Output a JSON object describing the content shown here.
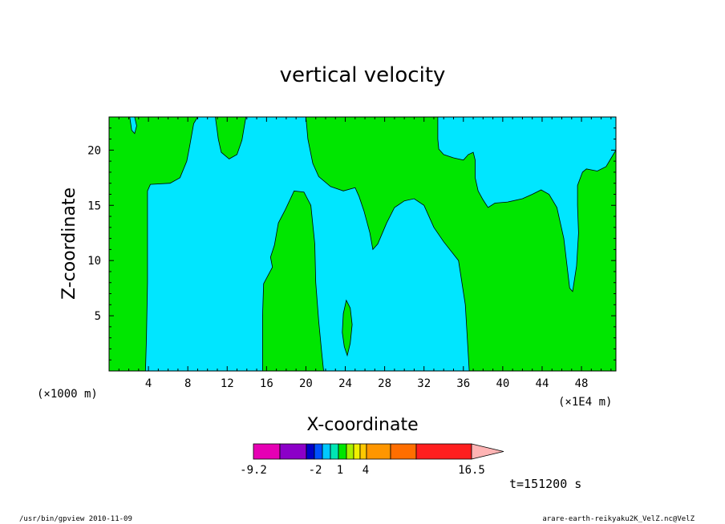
{
  "chart_data": {
    "type": "heatmap",
    "title": "vertical velocity",
    "xlabel": "X-coordinate",
    "ylabel": "Z-coordinate",
    "x_unit_label": "(×1000 m)",
    "x_range_unit_label": "(×1E4 m)",
    "xlim": [
      0,
      51.5
    ],
    "ylim": [
      0,
      23
    ],
    "x_ticks": [
      4,
      8,
      12,
      16,
      20,
      24,
      28,
      32,
      36,
      40,
      44,
      48
    ],
    "y_ticks": [
      5,
      10,
      15,
      20
    ],
    "colors": {
      "low": "#00e6ff",
      "mid": "#00e600",
      "outline": "#000000"
    },
    "colorbar": {
      "tick_labels": [
        "-9.2",
        "-2",
        "1",
        "4",
        "16.5"
      ],
      "segments": [
        "#e600b4",
        "#8c00c8",
        "#0000c8",
        "#0050ff",
        "#00c8ff",
        "#00e6b4",
        "#00e600",
        "#aaf000",
        "#f0f000",
        "#ffc800",
        "#ff9600",
        "#ff6e00",
        "#ff1e1e",
        "#ff7878",
        "#ffb4b4"
      ]
    },
    "time_label": "t=151200 s"
  },
  "footer": {
    "left": "/usr/bin/gpview  2010-11-09",
    "right": "arare-earth-reikyaku2K_VelZ.nc@VelZ"
  }
}
